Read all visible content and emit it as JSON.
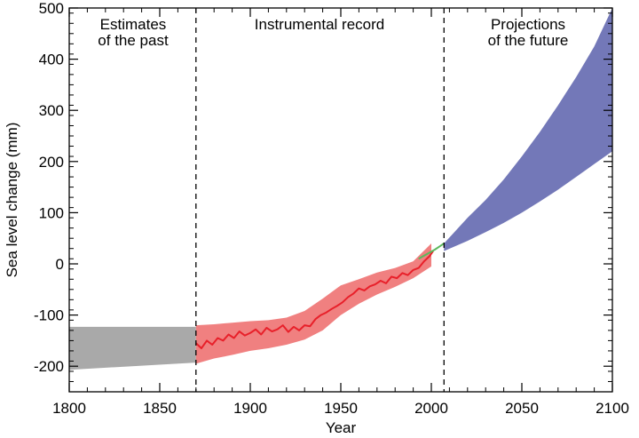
{
  "chart_data": {
    "type": "area",
    "xlabel": "Year",
    "ylabel": "Sea level change (mm)",
    "xlim": [
      1800,
      2100
    ],
    "ylim": [
      -250,
      500
    ],
    "x_ticks": [
      1800,
      1850,
      1900,
      1950,
      2000,
      2050,
      2100
    ],
    "y_ticks": [
      -200,
      -100,
      0,
      100,
      200,
      300,
      400,
      500
    ],
    "dividers": [
      1870,
      2007
    ],
    "section_labels": [
      {
        "lines": [
          "Estimates",
          "of the past"
        ]
      },
      {
        "lines": [
          "Instrumental record"
        ]
      },
      {
        "lines": [
          "Projections",
          "of the future"
        ]
      }
    ],
    "colors": {
      "past_band": "#a9a9a9",
      "record_band": "#f08080",
      "record_line": "#e8202a",
      "satellite_line": "#5cb85c",
      "projection_band": "#7378b8"
    },
    "series": [
      {
        "kind": "band",
        "color_key": "past_band",
        "x": [
          1800,
          1870
        ],
        "lower": [
          -207,
          -193
        ],
        "upper": [
          -123,
          -123
        ]
      },
      {
        "kind": "band",
        "color_key": "record_band",
        "x": [
          1870,
          1880,
          1890,
          1900,
          1910,
          1920,
          1930,
          1940,
          1950,
          1960,
          1970,
          1980,
          1990,
          2000
        ],
        "lower": [
          -195,
          -185,
          -178,
          -170,
          -165,
          -158,
          -148,
          -130,
          -100,
          -78,
          -60,
          -45,
          -28,
          -5
        ],
        "upper": [
          -120,
          -118,
          -115,
          -112,
          -110,
          -105,
          -92,
          -68,
          -42,
          -30,
          -17,
          -8,
          5,
          40
        ]
      },
      {
        "kind": "line",
        "color_key": "record_line",
        "x": [
          1870,
          1873,
          1876,
          1879,
          1882,
          1885,
          1888,
          1891,
          1894,
          1897,
          1900,
          1903,
          1906,
          1909,
          1912,
          1915,
          1918,
          1921,
          1924,
          1927,
          1930,
          1933,
          1936,
          1939,
          1942,
          1945,
          1948,
          1951,
          1954,
          1957,
          1960,
          1963,
          1966,
          1969,
          1972,
          1975,
          1978,
          1981,
          1984,
          1987,
          1990,
          1993,
          1996,
          1999,
          2001
        ],
        "y": [
          -155,
          -165,
          -150,
          -158,
          -145,
          -150,
          -138,
          -145,
          -132,
          -140,
          -135,
          -128,
          -138,
          -125,
          -132,
          -128,
          -120,
          -133,
          -123,
          -130,
          -120,
          -122,
          -108,
          -100,
          -95,
          -88,
          -82,
          -75,
          -65,
          -58,
          -48,
          -52,
          -44,
          -40,
          -33,
          -38,
          -25,
          -28,
          -18,
          -22,
          -12,
          -8,
          5,
          15,
          25
        ]
      },
      {
        "kind": "line",
        "color_key": "satellite_line",
        "x": [
          1993,
          1996,
          1999,
          2002,
          2005,
          2007
        ],
        "y": [
          10,
          16,
          22,
          28,
          35,
          40
        ]
      },
      {
        "kind": "band",
        "color_key": "projection_band",
        "x": [
          2007,
          2020,
          2030,
          2040,
          2050,
          2060,
          2070,
          2080,
          2090,
          2100
        ],
        "lower": [
          25,
          45,
          62,
          80,
          100,
          122,
          145,
          170,
          195,
          220
        ],
        "upper": [
          40,
          90,
          125,
          165,
          210,
          258,
          310,
          365,
          425,
          500
        ]
      }
    ]
  }
}
